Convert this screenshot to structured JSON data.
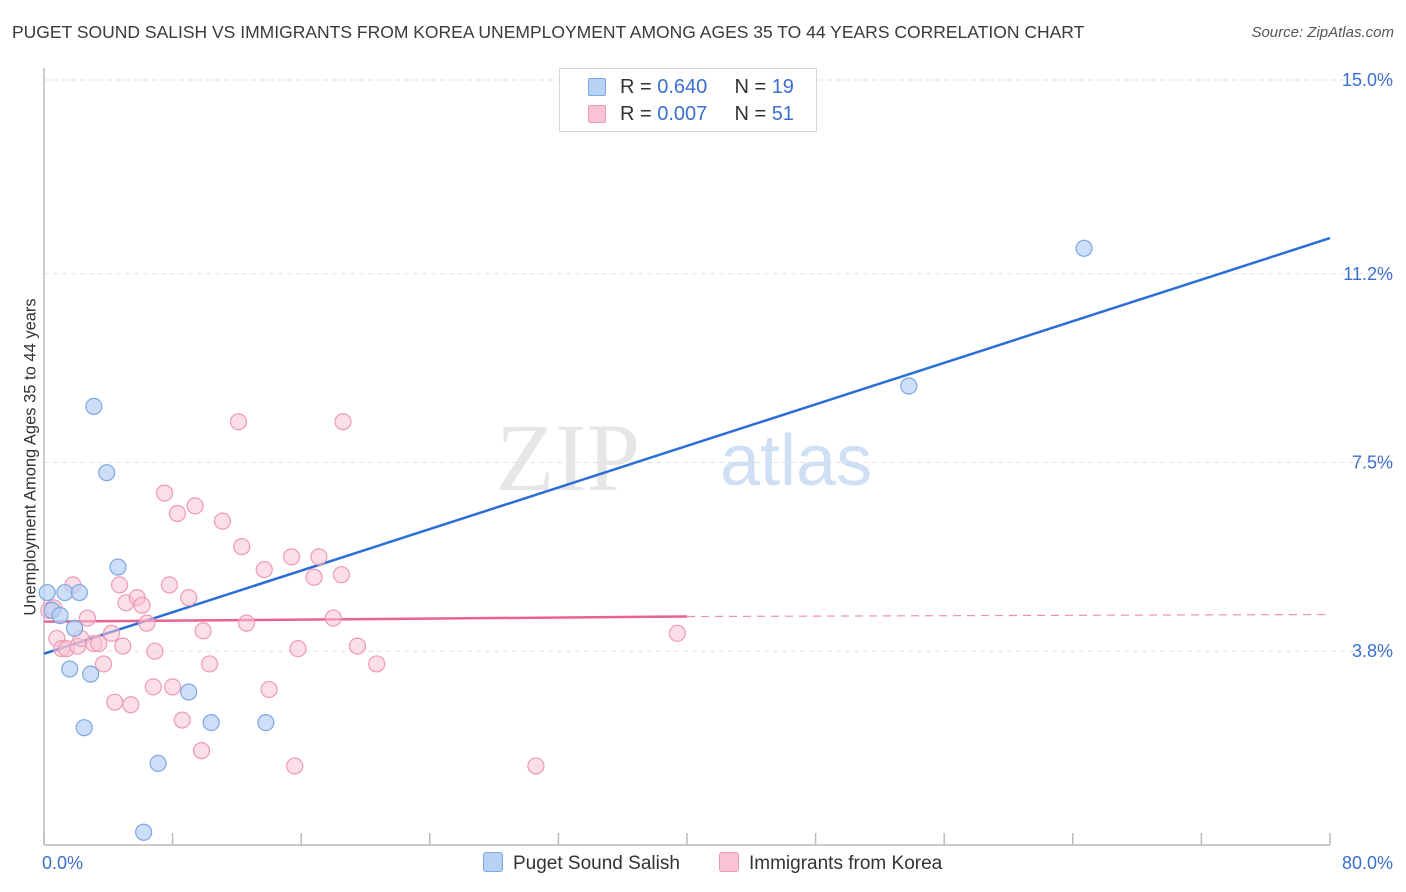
{
  "title": "PUGET SOUND SALISH VS IMMIGRANTS FROM KOREA UNEMPLOYMENT AMONG AGES 35 TO 44 YEARS CORRELATION CHART",
  "source": "Source: ZipAtlas.com",
  "watermark": {
    "zip": "ZIP",
    "atlas": "atlas"
  },
  "legend": {
    "series1": {
      "r_label": "R = ",
      "r_value": "0.640",
      "n_label": "N = ",
      "n_value": "19"
    },
    "series2": {
      "r_label": "R = ",
      "r_value": "0.007",
      "n_label": "N = ",
      "n_value": "51"
    }
  },
  "chart_data": {
    "type": "scatter",
    "title": "PUGET SOUND SALISH VS IMMIGRANTS FROM KOREA UNEMPLOYMENT AMONG AGES 35 TO 44 YEARS CORRELATION CHART",
    "xlabel": "",
    "ylabel": "Unemployment Among Ages 35 to 44 years",
    "xlim": [
      0,
      80
    ],
    "ylim": [
      0,
      15
    ],
    "x_tick_labels": [
      "0.0%",
      "80.0%"
    ],
    "y_ticks": [
      3.8,
      7.5,
      11.2,
      15.0
    ],
    "y_tick_labels": [
      "3.8%",
      "7.5%",
      "11.2%",
      "15.0%"
    ],
    "grid": true,
    "colors": {
      "series1_fill": "#b8d2f5",
      "series1_stroke": "#7ea6e0",
      "series1_line": "#2b6fd6",
      "series2_fill": "#f9c3d4",
      "series2_stroke": "#ee9ab4",
      "series2_line": "#e8638f",
      "grid": "#e2e2e2",
      "axis": "#bbbbbb",
      "tick_text": "#3b6fcf"
    },
    "series": [
      {
        "name": "Puget Sound Salish",
        "trend": {
          "x0": 0,
          "y0": 3.75,
          "x1": 80,
          "y1": 11.9
        },
        "points": [
          {
            "x": 0.2,
            "y": 4.95
          },
          {
            "x": 0.5,
            "y": 4.6
          },
          {
            "x": 1.0,
            "y": 4.5
          },
          {
            "x": 1.3,
            "y": 4.95
          },
          {
            "x": 1.6,
            "y": 3.45
          },
          {
            "x": 1.9,
            "y": 4.25
          },
          {
            "x": 2.2,
            "y": 4.95
          },
          {
            "x": 2.5,
            "y": 2.3
          },
          {
            "x": 2.9,
            "y": 3.35
          },
          {
            "x": 3.1,
            "y": 8.6
          },
          {
            "x": 3.9,
            "y": 7.3
          },
          {
            "x": 4.6,
            "y": 5.45
          },
          {
            "x": 6.2,
            "y": 0.25
          },
          {
            "x": 7.1,
            "y": 1.6
          },
          {
            "x": 9.0,
            "y": 3.0
          },
          {
            "x": 10.4,
            "y": 2.4
          },
          {
            "x": 13.8,
            "y": 2.4
          },
          {
            "x": 53.8,
            "y": 9.0
          },
          {
            "x": 64.7,
            "y": 11.7
          }
        ]
      },
      {
        "name": "Immigrants from Korea",
        "trend": {
          "x0": 0,
          "y0": 4.38,
          "x1": 40,
          "y1": 4.48
        },
        "trend_dashed": {
          "x0": 40,
          "y0": 4.48,
          "x1": 80,
          "y1": 4.52
        },
        "points": [
          {
            "x": 0.3,
            "y": 4.6
          },
          {
            "x": 0.6,
            "y": 4.65
          },
          {
            "x": 0.8,
            "y": 4.05
          },
          {
            "x": 1.1,
            "y": 3.85
          },
          {
            "x": 1.4,
            "y": 3.85
          },
          {
            "x": 1.8,
            "y": 5.1
          },
          {
            "x": 2.1,
            "y": 3.9
          },
          {
            "x": 2.3,
            "y": 4.05
          },
          {
            "x": 2.7,
            "y": 4.45
          },
          {
            "x": 3.1,
            "y": 3.95
          },
          {
            "x": 3.4,
            "y": 3.95
          },
          {
            "x": 3.7,
            "y": 3.55
          },
          {
            "x": 4.2,
            "y": 4.15
          },
          {
            "x": 4.4,
            "y": 2.8
          },
          {
            "x": 4.7,
            "y": 5.1
          },
          {
            "x": 4.9,
            "y": 3.9
          },
          {
            "x": 5.1,
            "y": 4.75
          },
          {
            "x": 5.4,
            "y": 2.75
          },
          {
            "x": 5.8,
            "y": 4.85
          },
          {
            "x": 6.1,
            "y": 4.7
          },
          {
            "x": 6.4,
            "y": 4.35
          },
          {
            "x": 6.8,
            "y": 3.1
          },
          {
            "x": 6.9,
            "y": 3.8
          },
          {
            "x": 7.5,
            "y": 6.9
          },
          {
            "x": 7.8,
            "y": 5.1
          },
          {
            "x": 8.0,
            "y": 3.1
          },
          {
            "x": 8.3,
            "y": 6.5
          },
          {
            "x": 8.6,
            "y": 2.45
          },
          {
            "x": 9.0,
            "y": 4.85
          },
          {
            "x": 9.4,
            "y": 6.65
          },
          {
            "x": 9.8,
            "y": 1.85
          },
          {
            "x": 9.9,
            "y": 4.2
          },
          {
            "x": 10.3,
            "y": 3.55
          },
          {
            "x": 11.1,
            "y": 6.35
          },
          {
            "x": 12.3,
            "y": 5.85
          },
          {
            "x": 12.6,
            "y": 4.35
          },
          {
            "x": 13.7,
            "y": 5.4
          },
          {
            "x": 14.0,
            "y": 3.05
          },
          {
            "x": 15.4,
            "y": 5.65
          },
          {
            "x": 15.6,
            "y": 1.55
          },
          {
            "x": 15.8,
            "y": 3.85
          },
          {
            "x": 18.0,
            "y": 4.45
          },
          {
            "x": 16.8,
            "y": 5.25
          },
          {
            "x": 17.1,
            "y": 5.65
          },
          {
            "x": 18.5,
            "y": 5.3
          },
          {
            "x": 18.6,
            "y": 8.3
          },
          {
            "x": 19.5,
            "y": 3.9
          },
          {
            "x": 20.7,
            "y": 3.55
          },
          {
            "x": 30.6,
            "y": 1.55
          },
          {
            "x": 39.4,
            "y": 4.15
          },
          {
            "x": 12.1,
            "y": 8.3
          }
        ]
      }
    ]
  },
  "bottom_legend": {
    "series1_label": "Puget Sound Salish",
    "series2_label": "Immigrants from Korea"
  }
}
